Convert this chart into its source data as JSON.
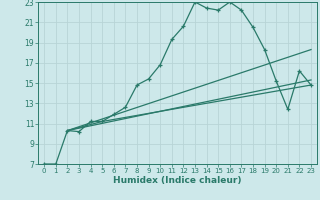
{
  "xlabel": "Humidex (Indice chaleur)",
  "background_color": "#cde8ea",
  "grid_color": "#b8d4d6",
  "line_color": "#2a7a6a",
  "xlim": [
    -0.5,
    23.5
  ],
  "ylim": [
    7,
    23
  ],
  "xticks": [
    0,
    1,
    2,
    3,
    4,
    5,
    6,
    7,
    8,
    9,
    10,
    11,
    12,
    13,
    14,
    15,
    16,
    17,
    18,
    19,
    20,
    21,
    22,
    23
  ],
  "yticks": [
    7,
    9,
    11,
    13,
    15,
    17,
    19,
    21,
    23
  ],
  "series1_x": [
    0,
    1,
    2,
    3,
    4,
    5,
    6,
    7,
    8,
    9,
    10,
    11,
    12,
    13,
    14,
    15,
    16,
    17,
    18,
    19,
    20,
    21,
    22,
    23
  ],
  "series1_y": [
    7.0,
    7.0,
    10.3,
    10.2,
    11.2,
    11.2,
    11.9,
    12.6,
    14.8,
    15.4,
    16.8,
    19.3,
    20.6,
    23.0,
    22.4,
    22.2,
    23.0,
    22.2,
    20.5,
    18.3,
    15.2,
    12.4,
    16.2,
    14.8
  ],
  "trend1_x": [
    2,
    23
  ],
  "trend1_y": [
    10.3,
    18.3
  ],
  "trend2_x": [
    2,
    23
  ],
  "trend2_y": [
    10.3,
    15.3
  ],
  "trend3_x": [
    2,
    5,
    23
  ],
  "trend3_y": [
    10.3,
    11.2,
    14.8
  ]
}
